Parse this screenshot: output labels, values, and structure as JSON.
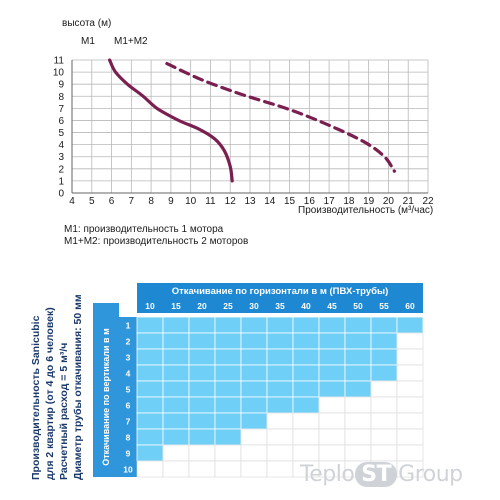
{
  "chart_data": [
    {
      "type": "line",
      "title": "",
      "ylabel": "высота (м)",
      "xlabel": "Производительность (м³/час)",
      "xlim": [
        4,
        22
      ],
      "ylim": [
        0,
        11
      ],
      "xticks": [
        4,
        5,
        6,
        7,
        8,
        9,
        10,
        11,
        12,
        13,
        14,
        15,
        16,
        17,
        18,
        19,
        20,
        21,
        22
      ],
      "yticks": [
        0,
        1,
        2,
        3,
        4,
        5,
        6,
        7,
        8,
        9,
        10,
        11
      ],
      "grid": true,
      "series": [
        {
          "name": "M1",
          "style": "solid",
          "color": "#7a1f4f",
          "points": [
            [
              5.9,
              11
            ],
            [
              6.2,
              10
            ],
            [
              6.8,
              9
            ],
            [
              7.6,
              8
            ],
            [
              8.3,
              7
            ],
            [
              9.4,
              6
            ],
            [
              10.4,
              5.3
            ],
            [
              11.2,
              4.5
            ],
            [
              11.7,
              3.5
            ],
            [
              12,
              2.2
            ],
            [
              12.1,
              1
            ]
          ]
        },
        {
          "name": "M1+M2",
          "style": "dashed",
          "color": "#7a1f4f",
          "points": [
            [
              8.8,
              10.7
            ],
            [
              10.5,
              9.4
            ],
            [
              12.5,
              8.2
            ],
            [
              15,
              6.9
            ],
            [
              17,
              5.6
            ],
            [
              18.8,
              4.2
            ],
            [
              19.8,
              3
            ],
            [
              20.3,
              1.8
            ]
          ]
        }
      ]
    },
    {
      "type": "table",
      "title": "Откачивание по горизонтали в м (ПВХ-трубы)",
      "row_header": "Откачивание по вертикали в м",
      "columns": [
        "10",
        "15",
        "20",
        "25",
        "30",
        "35",
        "40",
        "45",
        "50",
        "55",
        "60"
      ],
      "rows": [
        "1",
        "2",
        "3",
        "4",
        "5",
        "6",
        "7",
        "8",
        "9",
        "10"
      ],
      "filled_columns_per_row": [
        11,
        10,
        10,
        10,
        9,
        7,
        5,
        4,
        1,
        0
      ],
      "fill_color": "#6fcff6",
      "header_color": "#1e88d2",
      "row_header_color": "#2f96dc"
    }
  ],
  "legend": {
    "m1": "M1: производительность 1 мотора",
    "m2": "M1+M2: производительность 2 моторов"
  },
  "side_text": [
    "Производительность Sanicubic",
    "для 2 квартир (от 4 до 6 человек)",
    "Расчетный расход = 5 м³/ч",
    "Диаметр трубы откачивания: 50 мм"
  ],
  "watermark": {
    "part1": "Teplo",
    "part2": "ST",
    "part3": "Group"
  }
}
